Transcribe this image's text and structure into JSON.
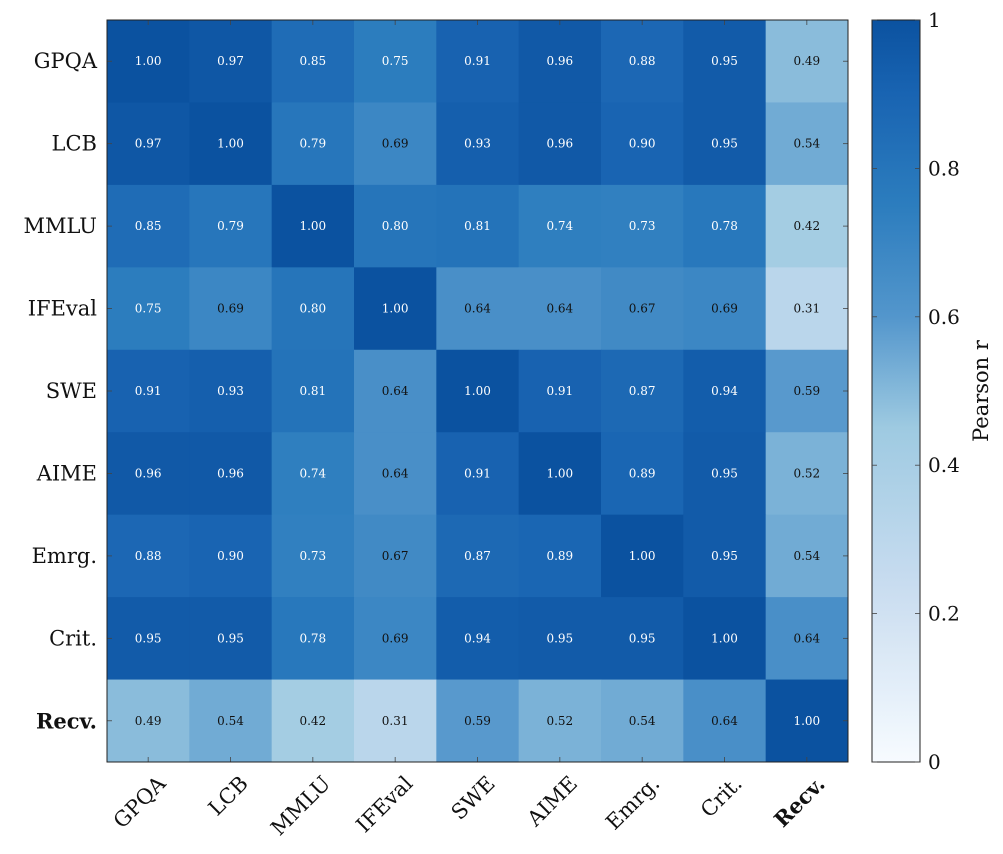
{
  "chart_data": {
    "type": "heatmap",
    "categories": [
      "GPQA",
      "LCB",
      "MMLU",
      "IFEval",
      "SWE",
      "AIME",
      "Emrg.",
      "Crit.",
      "Recv."
    ],
    "bold_categories": [
      "Recv."
    ],
    "values": [
      [
        1.0,
        0.97,
        0.85,
        0.75,
        0.91,
        0.96,
        0.88,
        0.95,
        0.49
      ],
      [
        0.97,
        1.0,
        0.79,
        0.69,
        0.93,
        0.96,
        0.9,
        0.95,
        0.54
      ],
      [
        0.85,
        0.79,
        1.0,
        0.8,
        0.81,
        0.74,
        0.73,
        0.78,
        0.42
      ],
      [
        0.75,
        0.69,
        0.8,
        1.0,
        0.64,
        0.64,
        0.67,
        0.69,
        0.31
      ],
      [
        0.91,
        0.93,
        0.81,
        0.64,
        1.0,
        0.91,
        0.87,
        0.94,
        0.59
      ],
      [
        0.96,
        0.96,
        0.74,
        0.64,
        0.91,
        1.0,
        0.89,
        0.95,
        0.52
      ],
      [
        0.88,
        0.9,
        0.73,
        0.67,
        0.87,
        0.89,
        1.0,
        0.95,
        0.54
      ],
      [
        0.95,
        0.95,
        0.78,
        0.69,
        0.94,
        0.95,
        0.95,
        1.0,
        0.64
      ],
      [
        0.49,
        0.54,
        0.42,
        0.31,
        0.59,
        0.52,
        0.54,
        0.64,
        1.0
      ]
    ],
    "colorbar": {
      "label": "Pearson r",
      "range": [
        0,
        1
      ],
      "ticks": [
        "0",
        "0.2",
        "0.4",
        "0.6",
        "0.8",
        "1"
      ],
      "colormap": "Blues",
      "low_color": "#ffffff",
      "high_color": "#08519c"
    }
  }
}
